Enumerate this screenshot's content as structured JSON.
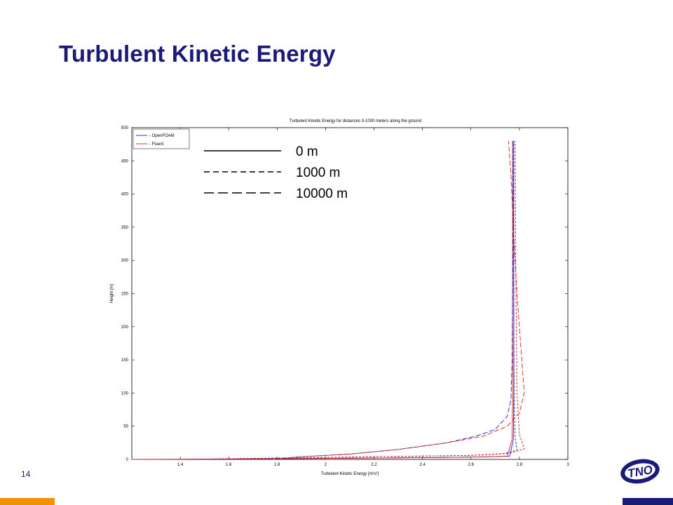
{
  "slide": {
    "title": "Turbulent Kinetic Energy",
    "page_number": "14",
    "logo_text": "TNO"
  },
  "colors": {
    "title": "#1a1a7a",
    "accent_orange": "#f39200",
    "accent_navy": "#1a1a7a",
    "openfoam": "#1f1fcc",
    "fluent": "#d42020"
  },
  "chart_data": {
    "type": "line",
    "title": "Turbulent Kinetic Energy for distances 0-1000 meters along the ground",
    "xlabel": "Turbulent Kinetic Energy [m²s²]",
    "ylabel": "Height [m]",
    "xlim": [
      1.2,
      3.0
    ],
    "ylim": [
      0,
      500
    ],
    "xticks": [
      "1.4",
      "1.6",
      "1.8",
      "2",
      "2.2",
      "2.4",
      "2.6",
      "2.8",
      "3"
    ],
    "yticks": [
      "0",
      "50",
      "100",
      "150",
      "200",
      "250",
      "300",
      "350",
      "400",
      "450",
      "500"
    ],
    "grid": false,
    "legend": {
      "placement": "top-left",
      "entries": [
        {
          "label": "- OpenFOAM",
          "color": "#1f1fcc"
        },
        {
          "label": "- Fluent",
          "color": "#d42020"
        }
      ]
    },
    "style_key": [
      {
        "label": "0 m",
        "dash": "solid"
      },
      {
        "label": "1000 m",
        "dash": "short-dash"
      },
      {
        "label": "10000 m",
        "dash": "long-dash"
      }
    ],
    "series": [
      {
        "name": "OpenFOAM 0 m",
        "color": "#1f1fcc",
        "dash": "solid",
        "x": [
          1.4,
          1.76,
          2.2,
          2.5,
          2.68,
          2.76,
          2.775,
          2.777,
          2.777,
          2.777
        ],
        "y": [
          0,
          1,
          2,
          3,
          4,
          5,
          30,
          100,
          300,
          480
        ]
      },
      {
        "name": "Fluent 0 m",
        "color": "#d42020",
        "dash": "solid",
        "x": [
          1.2,
          1.76,
          2.2,
          2.5,
          2.68,
          2.75,
          2.77,
          2.772,
          2.772,
          2.772
        ],
        "y": [
          0,
          1,
          2,
          3,
          4,
          5,
          30,
          100,
          300,
          480
        ]
      },
      {
        "name": "OpenFOAM 1000 m",
        "color": "#1f1fcc",
        "dash": "short-dash",
        "x": [
          1.4,
          1.8,
          2.2,
          2.6,
          2.74,
          2.79,
          2.782,
          2.778,
          2.776,
          2.776
        ],
        "y": [
          0,
          2,
          4,
          6,
          9,
          14,
          35,
          100,
          300,
          480
        ]
      },
      {
        "name": "Fluent 1000 m",
        "color": "#d42020",
        "dash": "short-dash",
        "x": [
          1.4,
          1.8,
          2.2,
          2.6,
          2.76,
          2.82,
          2.8,
          2.79,
          2.785,
          2.783
        ],
        "y": [
          0,
          2,
          4,
          6,
          9,
          16,
          38,
          100,
          300,
          480
        ]
      },
      {
        "name": "OpenFOAM 10000 m",
        "color": "#1f1fcc",
        "dash": "long-dash",
        "x": [
          1.76,
          1.9,
          2.1,
          2.3,
          2.5,
          2.62,
          2.7,
          2.75,
          2.765,
          2.77,
          2.772,
          2.774,
          2.772
        ],
        "y": [
          0,
          4,
          8,
          15,
          25,
          35,
          45,
          65,
          90,
          150,
          250,
          350,
          480
        ]
      },
      {
        "name": "Fluent 10000 m",
        "color": "#d42020",
        "dash": "long-dash",
        "x": [
          1.78,
          1.9,
          2.1,
          2.3,
          2.5,
          2.65,
          2.75,
          2.8,
          2.82,
          2.81,
          2.79,
          2.775,
          2.765,
          2.755
        ],
        "y": [
          0,
          4,
          8,
          15,
          25,
          35,
          50,
          70,
          100,
          150,
          250,
          350,
          430,
          480
        ]
      }
    ]
  }
}
